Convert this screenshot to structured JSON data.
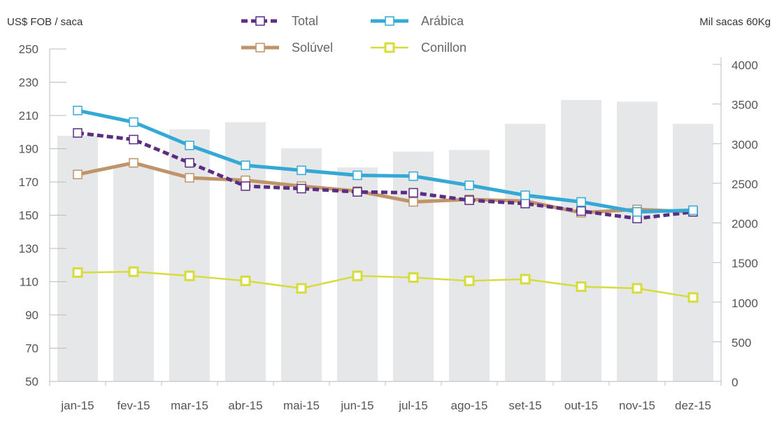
{
  "chart_data": {
    "type": "bar+line",
    "categories": [
      "jan-15",
      "fev-15",
      "mar-15",
      "abr-15",
      "mai-15",
      "jun-15",
      "jul-15",
      "ago-15",
      "set-15",
      "out-15",
      "nov-15",
      "dez-15"
    ],
    "left_axis": {
      "label": "US$ FOB / saca",
      "ylim": [
        50,
        250
      ],
      "ticks": [
        50,
        70,
        90,
        110,
        130,
        150,
        170,
        190,
        210,
        230,
        250
      ]
    },
    "right_axis": {
      "label": "Mil sacas 60Kg",
      "ylim": [
        0,
        4000
      ],
      "ticks": [
        0,
        500,
        1000,
        1500,
        2000,
        2500,
        3000,
        3500,
        4000
      ]
    },
    "bars": {
      "axis": "right",
      "color": "#e6e7e8",
      "values": [
        3100,
        2720,
        3180,
        3270,
        2940,
        2700,
        2900,
        2920,
        3250,
        3550,
        3530,
        3250
      ]
    },
    "series": [
      {
        "name": "Total",
        "axis": "left",
        "color": "#5b2d84",
        "dashed": true,
        "values": [
          199.5,
          195.5,
          181.5,
          167.5,
          166,
          164,
          163.5,
          159,
          157,
          152.5,
          148,
          152
        ]
      },
      {
        "name": "Arábica",
        "axis": "left",
        "color": "#35a9d6",
        "dashed": false,
        "values": [
          213,
          206,
          192,
          180,
          177,
          174,
          173.5,
          168,
          162,
          158,
          152,
          153
        ]
      },
      {
        "name": "Solúvel",
        "axis": "left",
        "color": "#bf9468",
        "dashed": false,
        "values": [
          174.5,
          181.5,
          172.5,
          171,
          167.5,
          164.5,
          158,
          159.5,
          158.5,
          151.5,
          153.5,
          152
        ]
      },
      {
        "name": "Conillon",
        "axis": "left",
        "color": "#d6dc3b",
        "dashed": false,
        "values": [
          115.5,
          116,
          113.5,
          110.5,
          106,
          113.5,
          112.5,
          110.5,
          111.5,
          107,
          106,
          100.5
        ]
      }
    ],
    "legend": {
      "placement": "top-center"
    },
    "grid": false
  }
}
